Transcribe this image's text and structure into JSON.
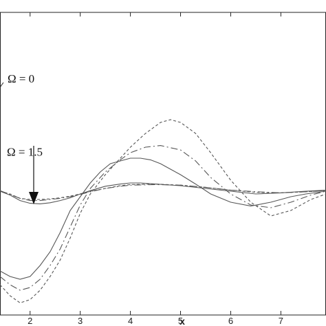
{
  "chart_data": {
    "type": "line",
    "title": "",
    "xlabel": "x",
    "ylabel": "",
    "xlim": [
      1.4,
      7.9
    ],
    "ylim": [
      -2.0,
      3.5
    ],
    "x_ticks": [
      "2",
      "3",
      "4",
      "5",
      "6",
      "7"
    ],
    "x_tick_values": [
      2,
      3,
      4,
      5,
      6,
      7
    ],
    "grid": false,
    "legend": "none",
    "line_color": "#555555",
    "annotations": [
      {
        "text": "Ω = 0",
        "x": 1.55,
        "y": 2.3
      },
      {
        "text": "Ω = 1.5",
        "x": 1.55,
        "y": 0.97
      }
    ],
    "series": [
      {
        "style": "solid",
        "x": [
          1.4,
          1.6,
          1.8,
          2.0,
          2.2,
          2.4,
          2.6,
          2.8,
          3.0,
          3.2,
          3.5,
          3.8,
          4.0,
          4.2,
          4.5,
          5.0,
          5.5,
          6.0,
          6.5,
          7.0,
          7.5,
          7.9
        ],
        "y": [
          0.25,
          0.18,
          0.08,
          0.03,
          0.02,
          0.04,
          0.08,
          0.13,
          0.2,
          0.26,
          0.34,
          0.38,
          0.4,
          0.4,
          0.38,
          0.35,
          0.3,
          0.25,
          0.2,
          0.22,
          0.25,
          0.27
        ]
      },
      {
        "style": "dashed",
        "x": [
          1.4,
          1.6,
          1.8,
          2.0,
          2.2,
          2.4,
          2.6,
          2.8,
          3.0,
          3.2,
          3.5,
          3.8,
          4.0,
          4.5,
          5.0,
          5.5,
          6.0,
          6.5,
          7.0,
          7.5,
          7.9
        ],
        "y": [
          0.25,
          0.2,
          0.12,
          0.1,
          0.1,
          0.11,
          0.13,
          0.16,
          0.2,
          0.25,
          0.3,
          0.35,
          0.37,
          0.38,
          0.36,
          0.32,
          0.27,
          0.23,
          0.22,
          0.24,
          0.26
        ]
      },
      {
        "style": "dashdot",
        "x": [
          1.4,
          1.8,
          2.0,
          2.2,
          2.4,
          2.6,
          2.8,
          3.0,
          3.2,
          3.5,
          3.8,
          4.0,
          4.5,
          5.0,
          5.5,
          6.0,
          6.5,
          7.0,
          7.5,
          7.9
        ],
        "y": [
          0.26,
          0.12,
          0.08,
          0.08,
          0.1,
          0.12,
          0.15,
          0.19,
          0.24,
          0.3,
          0.34,
          0.36,
          0.37,
          0.36,
          0.32,
          0.27,
          0.24,
          0.22,
          0.24,
          0.26
        ]
      },
      {
        "style": "solid",
        "x": [
          1.4,
          1.6,
          1.8,
          2.0,
          2.2,
          2.4,
          2.6,
          2.8,
          3.0,
          3.2,
          3.4,
          3.6,
          3.8,
          4.0,
          4.2,
          4.4,
          4.6,
          4.8,
          5.0,
          5.3,
          5.6,
          6.0,
          6.4,
          6.8,
          7.2,
          7.5,
          7.9
        ],
        "y": [
          -1.2,
          -1.3,
          -1.35,
          -1.3,
          -1.1,
          -0.85,
          -0.5,
          -0.1,
          0.15,
          0.4,
          0.6,
          0.75,
          0.8,
          0.85,
          0.85,
          0.82,
          0.75,
          0.65,
          0.55,
          0.38,
          0.2,
          0.05,
          -0.02,
          0.05,
          0.15,
          0.2,
          0.25
        ]
      },
      {
        "style": "dashdot",
        "x": [
          1.4,
          1.6,
          1.8,
          2.0,
          2.2,
          2.4,
          2.6,
          2.8,
          3.0,
          3.2,
          3.5,
          3.8,
          4.0,
          4.3,
          4.6,
          5.0,
          5.3,
          5.6,
          6.0,
          6.4,
          6.8,
          7.2,
          7.6,
          7.9
        ],
        "y": [
          -1.3,
          -1.45,
          -1.55,
          -1.5,
          -1.35,
          -1.1,
          -0.8,
          -0.4,
          0.0,
          0.3,
          0.6,
          0.82,
          0.95,
          1.05,
          1.08,
          1.0,
          0.8,
          0.5,
          0.2,
          0.0,
          -0.05,
          0.05,
          0.18,
          0.25
        ]
      },
      {
        "style": "dashed",
        "x": [
          1.4,
          1.6,
          1.8,
          2.0,
          2.2,
          2.4,
          2.6,
          2.8,
          3.0,
          3.2,
          3.5,
          3.8,
          4.0,
          4.3,
          4.6,
          4.8,
          5.0,
          5.3,
          5.6,
          6.0,
          6.4,
          6.8,
          7.2,
          7.6,
          7.9
        ],
        "y": [
          -1.45,
          -1.65,
          -1.78,
          -1.72,
          -1.55,
          -1.3,
          -1.0,
          -0.6,
          -0.15,
          0.2,
          0.55,
          0.85,
          1.05,
          1.3,
          1.5,
          1.55,
          1.5,
          1.3,
          0.95,
          0.45,
          0.05,
          -0.2,
          -0.1,
          0.1,
          0.2
        ]
      }
    ]
  }
}
